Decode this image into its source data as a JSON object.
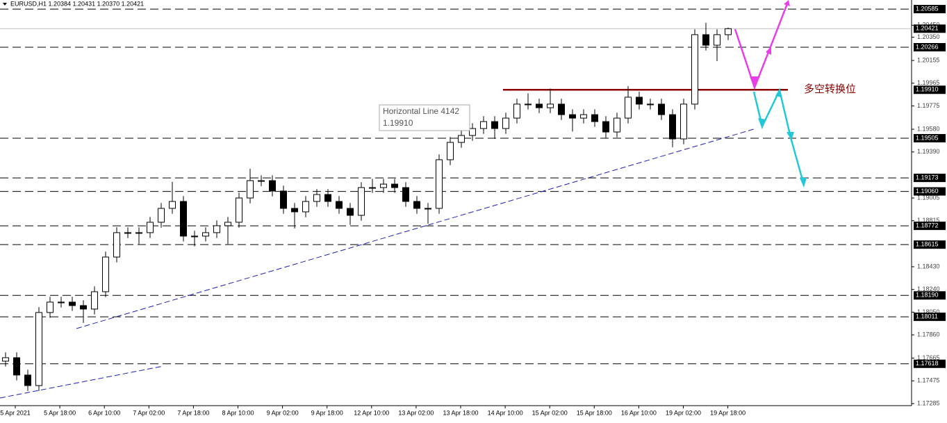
{
  "chart_data": {
    "type": "candlestick",
    "title": "EURUSD,H1  1.20384 1.20431 1.20370 1.20421",
    "ylim": [
      1.17268,
      1.20661
    ],
    "yticks": [
      {
        "value": 1.2045,
        "label": "1.20450"
      },
      {
        "value": 1.2035,
        "label": "1.20350"
      },
      {
        "value": 1.20155,
        "label": "1.20155"
      },
      {
        "value": 1.19965,
        "label": "1.19965"
      },
      {
        "value": 1.19775,
        "label": "1.19775"
      },
      {
        "value": 1.1958,
        "label": "1.19580"
      },
      {
        "value": 1.1939,
        "label": "1.19390"
      },
      {
        "value": 1.19005,
        "label": "1.19005"
      },
      {
        "value": 1.18815,
        "label": "1.18815"
      },
      {
        "value": 1.1843,
        "label": "1.18430"
      },
      {
        "value": 1.1824,
        "label": "1.18240"
      },
      {
        "value": 1.1805,
        "label": "1.18050"
      },
      {
        "value": 1.1786,
        "label": "1.17860"
      },
      {
        "value": 1.17665,
        "label": "1.17665"
      },
      {
        "value": 1.17475,
        "label": "1.17475"
      },
      {
        "value": 1.17285,
        "label": "1.17285"
      }
    ],
    "x_labels": [
      "5 Apr 2021",
      "5 Apr 18:00",
      "6 Apr 10:00",
      "7 Apr 02:00",
      "7 Apr 18:00",
      "8 Apr 10:00",
      "9 Apr 02:00",
      "9 Apr 18:00",
      "12 Apr 10:00",
      "13 Apr 02:00",
      "13 Apr 18:00",
      "14 Apr 10:00",
      "15 Apr 02:00",
      "15 Apr 18:00",
      "16 Apr 10:00",
      "19 Apr 02:00",
      "19 Apr 18:00"
    ],
    "current_price": {
      "value": 1.20421,
      "label": "1.20421"
    },
    "levels": [
      {
        "value": 1.20585,
        "label": "1.20585",
        "color": "#000000"
      },
      {
        "value": 1.20266,
        "label": "1.20266",
        "color": "#000000"
      },
      {
        "value": 1.1991,
        "label": "1.19910",
        "color": "#8b0000"
      },
      {
        "value": 1.19505,
        "label": "1.19505",
        "color": "#000000"
      },
      {
        "value": 1.19173,
        "label": "1.19173",
        "color": "#000000"
      },
      {
        "value": 1.1906,
        "label": "1.19060",
        "color": "#000000"
      },
      {
        "value": 1.18772,
        "label": "1.18772",
        "color": "#000000"
      },
      {
        "value": 1.18615,
        "label": "1.18615",
        "color": "#000000"
      },
      {
        "value": 1.1819,
        "label": "1.18190",
        "color": "#000000"
      },
      {
        "value": 1.18011,
        "label": "1.18011",
        "color": "#000000"
      },
      {
        "value": 1.17618,
        "label": "1.17618",
        "color": "#000000"
      }
    ],
    "annotation": "多空转换位",
    "tooltip": {
      "name": "Horizontal Line 4142",
      "value": "1.19910"
    },
    "trendlines": [
      {
        "x": [
          -0.5,
          14.19
        ],
        "y": [
          1.17332,
          1.17599
        ],
        "color": "#1f1fb4"
      },
      {
        "x": [
          6.375,
          67.5
        ],
        "y": [
          1.17913,
          1.19586
        ],
        "color": "#1f1fb4"
      }
    ],
    "open": [
      1.1764,
      1.17669,
      1.17524,
      1.17436,
      1.18047,
      1.18134,
      1.18134,
      1.18105,
      1.18076,
      1.18221,
      1.18511,
      1.18715,
      1.18715,
      1.18715,
      1.18802,
      1.18918,
      1.18976,
      1.18686,
      1.18686,
      1.18715,
      1.18773,
      1.18802,
      1.19005,
      1.1915,
      1.1915,
      1.19063,
      1.18918,
      1.18889,
      1.18976,
      1.19034,
      1.18976,
      1.18918,
      1.1886,
      1.19092,
      1.19092,
      1.19121,
      1.19092,
      1.18976,
      1.18918,
      1.18918,
      1.19325,
      1.1947,
      1.19528,
      1.19586,
      1.19644,
      1.19586,
      1.19673,
      1.1979,
      1.1979,
      1.1976,
      1.1979,
      1.19702,
      1.19673,
      1.19702,
      1.19644,
      1.19557,
      1.19673,
      1.19848,
      1.1979,
      1.1979,
      1.19702,
      1.19499,
      1.1979,
      1.20371,
      1.20283,
      1.20371
    ],
    "high": [
      1.17714,
      1.17714,
      1.17569,
      1.18092,
      1.18179,
      1.18179,
      1.18179,
      1.1815,
      1.18266,
      1.18556,
      1.1876,
      1.1876,
      1.1876,
      1.18847,
      1.18963,
      1.1914,
      1.19021,
      1.18731,
      1.1876,
      1.18818,
      1.18847,
      1.1905,
      1.1925,
      1.19195,
      1.19195,
      1.19108,
      1.18963,
      1.19021,
      1.19079,
      1.19079,
      1.19021,
      1.18963,
      1.19137,
      1.19165,
      1.19166,
      1.19166,
      1.19137,
      1.19021,
      1.18963,
      1.1937,
      1.19515,
      1.19573,
      1.19631,
      1.19689,
      1.19689,
      1.19718,
      1.19835,
      1.1988,
      1.19835,
      1.1992,
      1.19835,
      1.19747,
      1.19747,
      1.19747,
      1.19689,
      1.19718,
      1.1994,
      1.19893,
      1.19835,
      1.19835,
      1.19747,
      1.19835,
      1.20416,
      1.2047,
      1.20416,
      1.20431
    ],
    "low": [
      1.17595,
      1.17479,
      1.17391,
      1.17391,
      1.18002,
      1.18089,
      1.1806,
      1.1796,
      1.18031,
      1.18176,
      1.18466,
      1.1867,
      1.1862,
      1.1867,
      1.18757,
      1.18873,
      1.18641,
      1.186,
      1.18641,
      1.1867,
      1.1862,
      1.18757,
      1.1896,
      1.19105,
      1.19018,
      1.18873,
      1.1875,
      1.18844,
      1.18931,
      1.18931,
      1.18873,
      1.1878,
      1.18815,
      1.19047,
      1.19047,
      1.19047,
      1.18931,
      1.18873,
      1.1879,
      1.18873,
      1.1928,
      1.19425,
      1.19483,
      1.19541,
      1.195,
      1.19541,
      1.19628,
      1.19745,
      1.19715,
      1.19715,
      1.19657,
      1.1956,
      1.19628,
      1.19599,
      1.19505,
      1.19512,
      1.19628,
      1.19745,
      1.19745,
      1.19657,
      1.1943,
      1.19454,
      1.19745,
      1.20238,
      1.2015,
      1.20326
    ],
    "close": [
      1.17669,
      1.17524,
      1.17436,
      1.18047,
      1.18134,
      1.18134,
      1.18105,
      1.18076,
      1.18221,
      1.18511,
      1.18715,
      1.18715,
      1.18715,
      1.18802,
      1.18918,
      1.18976,
      1.18686,
      1.18686,
      1.18715,
      1.18773,
      1.18802,
      1.19005,
      1.1915,
      1.1915,
      1.19063,
      1.18918,
      1.18889,
      1.18976,
      1.19034,
      1.18976,
      1.18918,
      1.1886,
      1.19092,
      1.19092,
      1.19121,
      1.19092,
      1.18976,
      1.18918,
      1.18918,
      1.19325,
      1.1947,
      1.19528,
      1.19586,
      1.19644,
      1.19586,
      1.19673,
      1.1979,
      1.1979,
      1.1976,
      1.1979,
      1.19702,
      1.19673,
      1.19702,
      1.19644,
      1.19557,
      1.19673,
      1.19848,
      1.1979,
      1.1979,
      1.19702,
      1.19499,
      1.1979,
      1.20371,
      1.20283,
      1.20371,
      1.20421
    ],
    "color": "#000000"
  }
}
